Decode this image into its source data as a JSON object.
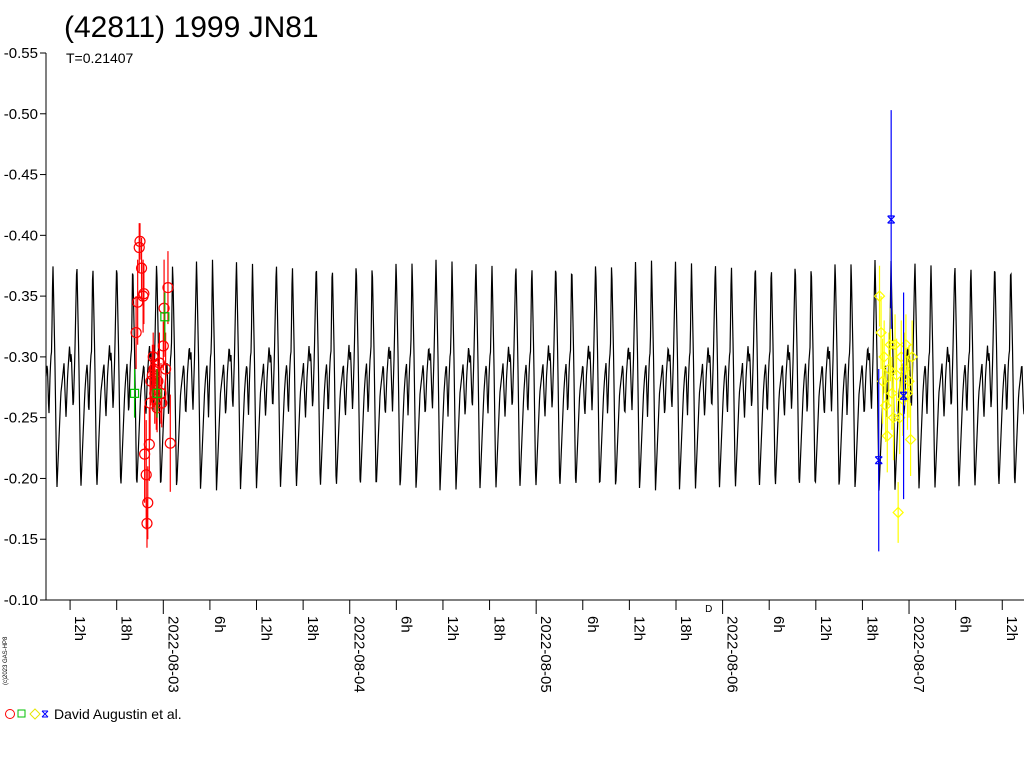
{
  "chart_data": {
    "type": "scatter",
    "title": "(42811) 1999 JN81",
    "subtitle": "T=0.21407",
    "credit": "(c)2023 GAS-HP8",
    "legend_label": "David Augustin et al.",
    "axis_marker": "D",
    "y_axis": {
      "ylim": [
        -0.55,
        -0.1
      ],
      "inverted": true,
      "ticks": [
        "-0.55",
        "-0.50",
        "-0.45",
        "-0.40",
        "-0.35",
        "-0.30",
        "-0.25",
        "-0.20",
        "-0.15",
        "-0.10"
      ]
    },
    "x_axis": {
      "range": [
        "2022-08-02 08:54",
        "2022-08-07 14:48"
      ],
      "ticks": [
        {
          "t": "2022-08-02 12:00",
          "label": "12h",
          "major": false
        },
        {
          "t": "2022-08-02 18:00",
          "label": "18h",
          "major": false
        },
        {
          "t": "2022-08-03 00:00",
          "label": "2022-08-03",
          "major": true
        },
        {
          "t": "2022-08-03 06:00",
          "label": "6h",
          "major": false
        },
        {
          "t": "2022-08-03 12:00",
          "label": "12h",
          "major": false
        },
        {
          "t": "2022-08-03 18:00",
          "label": "18h",
          "major": false
        },
        {
          "t": "2022-08-04 00:00",
          "label": "2022-08-04",
          "major": true
        },
        {
          "t": "2022-08-04 06:00",
          "label": "6h",
          "major": false
        },
        {
          "t": "2022-08-04 12:00",
          "label": "12h",
          "major": false
        },
        {
          "t": "2022-08-04 18:00",
          "label": "18h",
          "major": false
        },
        {
          "t": "2022-08-05 00:00",
          "label": "2022-08-05",
          "major": true
        },
        {
          "t": "2022-08-05 06:00",
          "label": "6h",
          "major": false
        },
        {
          "t": "2022-08-05 12:00",
          "label": "12h",
          "major": false
        },
        {
          "t": "2022-08-05 18:00",
          "label": "18h",
          "major": false
        },
        {
          "t": "2022-08-06 00:00",
          "label": "2022-08-06",
          "major": true
        },
        {
          "t": "2022-08-06 06:00",
          "label": "6h",
          "major": false
        },
        {
          "t": "2022-08-06 12:00",
          "label": "12h",
          "major": false
        },
        {
          "t": "2022-08-06 18:00",
          "label": "18h",
          "major": false
        },
        {
          "t": "2022-08-07 00:00",
          "label": "2022-08-07",
          "major": true
        },
        {
          "t": "2022-08-07 06:00",
          "label": "6h",
          "major": false
        },
        {
          "t": "2022-08-07 12:00",
          "label": "12h",
          "major": false
        }
      ]
    },
    "model": {
      "color": "#000000",
      "period_hours": 5.1377,
      "phase_start": "2022-08-02 09:47",
      "shape": [
        [
          0.0,
          -0.38
        ],
        [
          0.05,
          -0.3
        ],
        [
          0.1,
          -0.19
        ],
        [
          0.15,
          -0.23
        ],
        [
          0.2,
          -0.27
        ],
        [
          0.25,
          -0.285
        ],
        [
          0.28,
          -0.295
        ],
        [
          0.3,
          -0.275
        ],
        [
          0.33,
          -0.25
        ],
        [
          0.37,
          -0.285
        ],
        [
          0.4,
          -0.3
        ],
        [
          0.42,
          -0.31
        ],
        [
          0.44,
          -0.295
        ],
        [
          0.46,
          -0.305
        ],
        [
          0.48,
          -0.285
        ],
        [
          0.51,
          -0.255
        ],
        [
          0.55,
          -0.3
        ],
        [
          0.6,
          -0.38
        ],
        [
          0.65,
          -0.3
        ],
        [
          0.7,
          -0.19
        ],
        [
          0.75,
          -0.23
        ],
        [
          0.8,
          -0.27
        ],
        [
          0.83,
          -0.285
        ],
        [
          0.86,
          -0.295
        ],
        [
          0.88,
          -0.275
        ],
        [
          0.9,
          -0.25
        ],
        [
          0.93,
          -0.285
        ],
        [
          0.95,
          -0.3
        ],
        [
          0.97,
          -0.305
        ],
        [
          1.0,
          -0.38
        ]
      ]
    },
    "series": [
      {
        "symbol": "circle",
        "color": "#ff0000",
        "points": [
          {
            "t": "2022-08-02 20:30",
            "y": -0.32,
            "err": 0.03
          },
          {
            "t": "2022-08-02 20:42",
            "y": -0.345,
            "err": 0.035
          },
          {
            "t": "2022-08-02 20:54",
            "y": -0.39,
            "err": 0.02
          },
          {
            "t": "2022-08-02 21:00",
            "y": -0.395,
            "err": 0.015
          },
          {
            "t": "2022-08-02 21:12",
            "y": -0.373,
            "err": 0.025
          },
          {
            "t": "2022-08-02 21:24",
            "y": -0.35,
            "err": 0.03
          },
          {
            "t": "2022-08-02 21:30",
            "y": -0.352,
            "err": 0.025
          },
          {
            "t": "2022-08-02 21:36",
            "y": -0.22,
            "err": 0.04
          },
          {
            "t": "2022-08-02 21:48",
            "y": -0.203,
            "err": 0.045
          },
          {
            "t": "2022-08-02 21:54",
            "y": -0.163,
            "err": 0.02
          },
          {
            "t": "2022-08-02 22:00",
            "y": -0.18,
            "err": 0.03
          },
          {
            "t": "2022-08-02 22:12",
            "y": -0.228,
            "err": 0.03
          },
          {
            "t": "2022-08-02 22:18",
            "y": -0.262,
            "err": 0.03
          },
          {
            "t": "2022-08-02 22:24",
            "y": -0.28,
            "err": 0.02
          },
          {
            "t": "2022-08-02 22:36",
            "y": -0.285,
            "err": 0.025
          },
          {
            "t": "2022-08-02 22:42",
            "y": -0.3,
            "err": 0.02
          },
          {
            "t": "2022-08-02 22:48",
            "y": -0.29,
            "err": 0.02
          },
          {
            "t": "2022-08-02 22:54",
            "y": -0.27,
            "err": 0.025
          },
          {
            "t": "2022-08-02 23:06",
            "y": -0.265,
            "err": 0.025
          },
          {
            "t": "2022-08-02 23:12",
            "y": -0.258,
            "err": 0.02
          },
          {
            "t": "2022-08-02 23:18",
            "y": -0.28,
            "err": 0.025
          },
          {
            "t": "2022-08-02 23:30",
            "y": -0.295,
            "err": 0.025
          },
          {
            "t": "2022-08-02 23:42",
            "y": -0.27,
            "err": 0.025
          },
          {
            "t": "2022-08-02 23:48",
            "y": -0.262,
            "err": 0.02
          },
          {
            "t": "2022-08-03 00:00",
            "y": -0.309,
            "err": 0.02
          },
          {
            "t": "2022-08-03 00:06",
            "y": -0.34,
            "err": 0.04
          },
          {
            "t": "2022-08-03 00:18",
            "y": -0.29,
            "err": 0.03
          },
          {
            "t": "2022-08-03 00:36",
            "y": -0.357,
            "err": 0.03
          },
          {
            "t": "2022-08-03 00:54",
            "y": -0.229,
            "err": 0.04
          }
        ]
      },
      {
        "symbol": "square",
        "color": "#00c000",
        "points": [
          {
            "t": "2022-08-02 20:18",
            "y": -0.27,
            "err": 0.02
          },
          {
            "t": "2022-08-02 23:12",
            "y": -0.27,
            "err": 0.02
          },
          {
            "t": "2022-08-03 00:12",
            "y": -0.333,
            "err": 0.02
          }
        ]
      },
      {
        "symbol": "diamond",
        "color": "#ffff00",
        "points": [
          {
            "t": "2022-08-06 20:12",
            "y": -0.35,
            "err": 0.025
          },
          {
            "t": "2022-08-06 20:24",
            "y": -0.32,
            "err": 0.03
          },
          {
            "t": "2022-08-06 20:36",
            "y": -0.28,
            "err": 0.035
          },
          {
            "t": "2022-08-06 20:48",
            "y": -0.3,
            "err": 0.03
          },
          {
            "t": "2022-08-06 21:00",
            "y": -0.26,
            "err": 0.03
          },
          {
            "t": "2022-08-06 21:12",
            "y": -0.235,
            "err": 0.03
          },
          {
            "t": "2022-08-06 21:24",
            "y": -0.29,
            "err": 0.03
          },
          {
            "t": "2022-08-06 21:36",
            "y": -0.31,
            "err": 0.03
          },
          {
            "t": "2022-08-06 21:48",
            "y": -0.27,
            "err": 0.03
          },
          {
            "t": "2022-08-06 22:00",
            "y": -0.25,
            "err": 0.035
          },
          {
            "t": "2022-08-06 22:12",
            "y": -0.31,
            "err": 0.025
          },
          {
            "t": "2022-08-06 22:24",
            "y": -0.285,
            "err": 0.03
          },
          {
            "t": "2022-08-06 22:36",
            "y": -0.172,
            "err": 0.025
          },
          {
            "t": "2022-08-06 22:48",
            "y": -0.25,
            "err": 0.03
          },
          {
            "t": "2022-08-06 23:00",
            "y": -0.3,
            "err": 0.03
          },
          {
            "t": "2022-08-06 23:12",
            "y": -0.265,
            "err": 0.03
          },
          {
            "t": "2022-08-06 23:24",
            "y": -0.29,
            "err": 0.03
          },
          {
            "t": "2022-08-06 23:36",
            "y": -0.31,
            "err": 0.025
          },
          {
            "t": "2022-08-06 23:48",
            "y": -0.27,
            "err": 0.03
          },
          {
            "t": "2022-08-07 00:00",
            "y": -0.28,
            "err": 0.03
          },
          {
            "t": "2022-08-07 00:12",
            "y": -0.232,
            "err": 0.03
          },
          {
            "t": "2022-08-07 00:24",
            "y": -0.3,
            "err": 0.03
          }
        ]
      },
      {
        "symbol": "star",
        "color": "#0000ff",
        "points": [
          {
            "t": "2022-08-06 20:06",
            "y": -0.215,
            "err": 0.075
          },
          {
            "t": "2022-08-06 21:42",
            "y": -0.413,
            "err": 0.09
          },
          {
            "t": "2022-08-06 23:18",
            "y": -0.268,
            "err": 0.085
          }
        ]
      }
    ]
  }
}
